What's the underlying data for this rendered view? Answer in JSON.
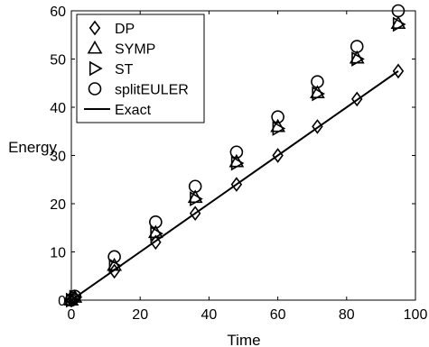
{
  "chart_data": {
    "type": "scatter",
    "xlabel": "Time",
    "ylabel": "Energy",
    "xlim": [
      0,
      100
    ],
    "ylim": [
      0,
      60
    ],
    "xticks": [
      0,
      20,
      40,
      60,
      80,
      100
    ],
    "yticks": [
      0,
      10,
      20,
      30,
      40,
      50,
      60
    ],
    "grid": false,
    "legend_position": "top-left",
    "x": [
      0,
      1,
      12.5,
      24.5,
      36,
      48,
      60,
      71.5,
      83,
      95
    ],
    "series": [
      {
        "name": "DP",
        "marker": "diamond",
        "values": [
          0,
          0.5,
          6,
          12,
          18,
          24,
          30,
          36,
          41.7,
          47.5
        ]
      },
      {
        "name": "SYMP",
        "marker": "triangle-up",
        "values": [
          0,
          0.6,
          7.2,
          14,
          21.3,
          28.7,
          36,
          43,
          50.2,
          57.4
        ]
      },
      {
        "name": "ST",
        "marker": "triangle-right",
        "values": [
          0,
          0.6,
          7.1,
          13.8,
          21,
          28.4,
          35.6,
          42.8,
          50,
          57.2
        ]
      },
      {
        "name": "splitEULER",
        "marker": "circle",
        "values": [
          0,
          0.8,
          9,
          16.2,
          23.6,
          30.7,
          38,
          45.3,
          52.6,
          60
        ]
      },
      {
        "name": "Exact",
        "marker": "line",
        "values": [
          0,
          0.5,
          6.25,
          12.25,
          18,
          24,
          30,
          35.75,
          41.5,
          47.5
        ]
      }
    ]
  }
}
